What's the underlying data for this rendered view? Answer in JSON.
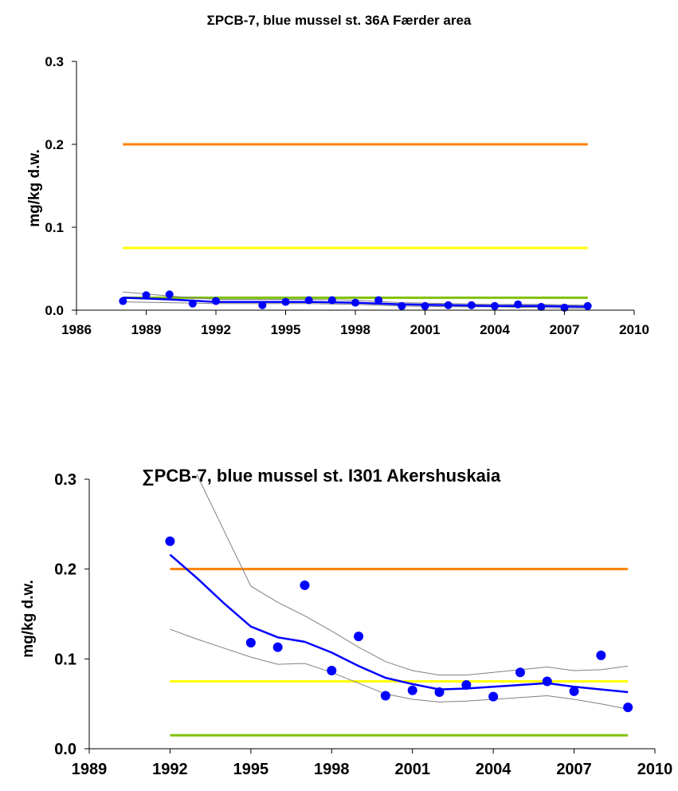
{
  "chart_data": [
    {
      "type": "scatter",
      "title": "ΣPCB-7, blue mussel st. 36A Færder area",
      "xlabel": "",
      "ylabel": "mg/kg d.w.",
      "xlim": [
        1986,
        2010
      ],
      "ylim": [
        0.0,
        0.3
      ],
      "xticks": [
        "1986",
        "1989",
        "1992",
        "1995",
        "1998",
        "2001",
        "2004",
        "2007",
        "2010"
      ],
      "yticks": [
        "0.0",
        "0.1",
        "0.2",
        "0.3"
      ],
      "grid": false,
      "colors": {
        "points": "#0000ff",
        "trend": "#0000ff",
        "band": "#808080",
        "class_high": "#ff8000",
        "class_mid": "#ffff00",
        "class_low": "#80c000"
      },
      "reference_lines": [
        {
          "y": 0.2,
          "x": [
            1988,
            2008
          ],
          "color": "#ff8000"
        },
        {
          "y": 0.075,
          "x": [
            1988,
            2008
          ],
          "color": "#ffff00"
        },
        {
          "y": 0.015,
          "x": [
            1988,
            2008
          ],
          "color": "#80c000"
        }
      ],
      "points": {
        "x": [
          1988,
          1989,
          1990,
          1991,
          1992,
          1994,
          1995,
          1996,
          1997,
          1998,
          1999,
          2000,
          2001,
          2002,
          2003,
          2004,
          2005,
          2006,
          2007,
          2008
        ],
        "y": [
          0.011,
          0.018,
          0.019,
          0.008,
          0.011,
          0.006,
          0.01,
          0.012,
          0.012,
          0.009,
          0.012,
          0.005,
          0.005,
          0.006,
          0.006,
          0.005,
          0.007,
          0.004,
          0.003,
          0.005
        ]
      },
      "trend": {
        "x": [
          1988,
          1990,
          1992,
          1994,
          1996,
          1998,
          2000,
          2002,
          2004,
          2006,
          2008
        ],
        "y": [
          0.015,
          0.013,
          0.01,
          0.01,
          0.01,
          0.009,
          0.007,
          0.006,
          0.005,
          0.005,
          0.004
        ]
      },
      "band_upper": {
        "x": [
          1988,
          1990,
          1992,
          1994,
          1996,
          1998,
          2000,
          2002,
          2004,
          2006,
          2008
        ],
        "y": [
          0.022,
          0.017,
          0.013,
          0.013,
          0.013,
          0.012,
          0.009,
          0.008,
          0.007,
          0.007,
          0.006
        ]
      },
      "band_lower": {
        "x": [
          1988,
          1990,
          1992,
          1994,
          1996,
          1998,
          2000,
          2002,
          2004,
          2006,
          2008
        ],
        "y": [
          0.01,
          0.009,
          0.008,
          0.008,
          0.008,
          0.007,
          0.005,
          0.004,
          0.004,
          0.003,
          0.002
        ]
      }
    },
    {
      "type": "scatter",
      "title": "∑PCB-7, blue mussel st. I301 Akershuskaia",
      "xlabel": "",
      "ylabel": "mg/kg d.w.",
      "xlim": [
        1989,
        2010
      ],
      "ylim": [
        0.0,
        0.3
      ],
      "xticks": [
        "1989",
        "1992",
        "1995",
        "1998",
        "2001",
        "2004",
        "2007",
        "2010"
      ],
      "yticks": [
        "0.0",
        "0.1",
        "0.2",
        "0.3"
      ],
      "grid": false,
      "colors": {
        "points": "#0000ff",
        "trend": "#0000ff",
        "band": "#808080",
        "class_high": "#ff8000",
        "class_mid": "#ffff00",
        "class_low": "#80c000"
      },
      "reference_lines": [
        {
          "y": 0.2,
          "x": [
            1992,
            2009
          ],
          "color": "#ff8000"
        },
        {
          "y": 0.075,
          "x": [
            1992,
            2009
          ],
          "color": "#ffff00"
        },
        {
          "y": 0.015,
          "x": [
            1992,
            2009
          ],
          "color": "#80c000"
        }
      ],
      "points": {
        "x": [
          1992,
          1995,
          1996,
          1997,
          1998,
          1999,
          2000,
          2001,
          2002,
          2003,
          2004,
          2005,
          2006,
          2007,
          2008,
          2009
        ],
        "y": [
          0.231,
          0.118,
          0.113,
          0.182,
          0.087,
          0.125,
          0.059,
          0.065,
          0.063,
          0.071,
          0.058,
          0.085,
          0.075,
          0.064,
          0.104,
          0.046
        ]
      },
      "trend": {
        "x": [
          1992,
          1993,
          1994,
          1995,
          1996,
          1997,
          1998,
          1999,
          2000,
          2001,
          2002,
          2003,
          2004,
          2005,
          2006,
          2007,
          2008,
          2009
        ],
        "y": [
          0.216,
          0.19,
          0.162,
          0.136,
          0.124,
          0.119,
          0.107,
          0.092,
          0.079,
          0.072,
          0.066,
          0.067,
          0.069,
          0.071,
          0.073,
          0.069,
          0.066,
          0.063
        ]
      },
      "band_upper": {
        "x": [
          1993,
          1994,
          1995,
          1996,
          1997,
          1998,
          1999,
          2000,
          2001,
          2002,
          2003,
          2004,
          2005,
          2006,
          2007,
          2008,
          2009
        ],
        "y": [
          0.305,
          0.243,
          0.181,
          0.163,
          0.148,
          0.131,
          0.113,
          0.097,
          0.087,
          0.082,
          0.082,
          0.085,
          0.088,
          0.091,
          0.087,
          0.088,
          0.092
        ]
      },
      "band_lower": {
        "x": [
          1992,
          1993,
          1994,
          1995,
          1996,
          1997,
          1998,
          1999,
          2000,
          2001,
          2002,
          2003,
          2004,
          2005,
          2006,
          2007,
          2008,
          2009
        ],
        "y": [
          0.133,
          0.122,
          0.112,
          0.102,
          0.094,
          0.095,
          0.085,
          0.073,
          0.061,
          0.055,
          0.052,
          0.053,
          0.055,
          0.057,
          0.059,
          0.055,
          0.05,
          0.044
        ]
      }
    }
  ]
}
